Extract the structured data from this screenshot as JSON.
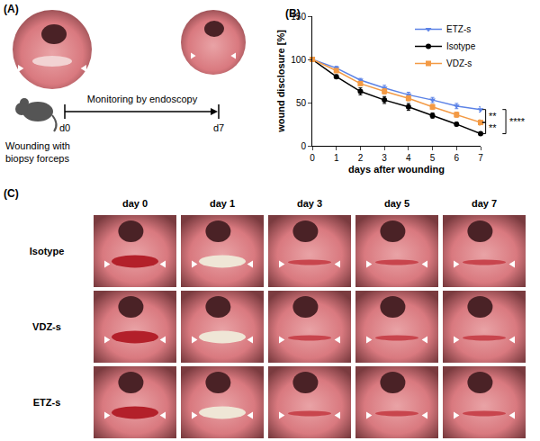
{
  "panel_a": {
    "panel_label": "(A)",
    "start": "d0",
    "end": "d7",
    "timeline": "Monitoring by endoscopy",
    "procedure": [
      "Wounding with",
      "biopsy forceps"
    ]
  },
  "chart_data": {
    "panel_label": "(B)",
    "type": "line",
    "x": [
      0,
      1,
      2,
      3,
      4,
      5,
      6,
      7
    ],
    "xlabel": "days after wounding",
    "ylabel": "wound disclosure [%]",
    "xlim": [
      0,
      7
    ],
    "xticks": [
      0,
      1,
      2,
      3,
      4,
      5,
      6,
      7
    ],
    "ylim": [
      0,
      150
    ],
    "yticks": [
      0,
      50,
      100,
      150
    ],
    "grid": false,
    "legend": "upper right",
    "series": [
      {
        "name": "ETZ-s",
        "color": "#5b82e6",
        "marker": "triangle-down",
        "values": [
          100,
          90,
          76,
          67,
          59,
          53,
          46,
          42
        ],
        "error": [
          0,
          2,
          2,
          3,
          3,
          3,
          3,
          3
        ]
      },
      {
        "name": "Isotype",
        "color": "#000000",
        "marker": "circle",
        "values": [
          100,
          80,
          63,
          53,
          45,
          35,
          25,
          14
        ],
        "error": [
          0,
          2,
          4,
          4,
          4,
          3,
          2,
          2
        ]
      },
      {
        "name": "VDZ-s",
        "color": "#f39a45",
        "marker": "square",
        "values": [
          100,
          87,
          72,
          63,
          55,
          45,
          36,
          27
        ],
        "error": [
          0,
          2,
          2,
          3,
          3,
          3,
          3,
          3
        ]
      }
    ],
    "significance": [
      {
        "between": [
          "ETZ-s",
          "VDZ-s"
        ],
        "label": "**"
      },
      {
        "between": [
          "VDZ-s",
          "Isotype"
        ],
        "label": "**"
      },
      {
        "between": [
          "ETZ-s",
          "Isotype"
        ],
        "label": "****"
      }
    ]
  },
  "panel_c": {
    "panel_label": "(C)",
    "columns": [
      "day 0",
      "day 1",
      "day 3",
      "day 5",
      "day 7"
    ],
    "rows": [
      "Isotype",
      "VDZ-s",
      "ETZ-s"
    ]
  }
}
